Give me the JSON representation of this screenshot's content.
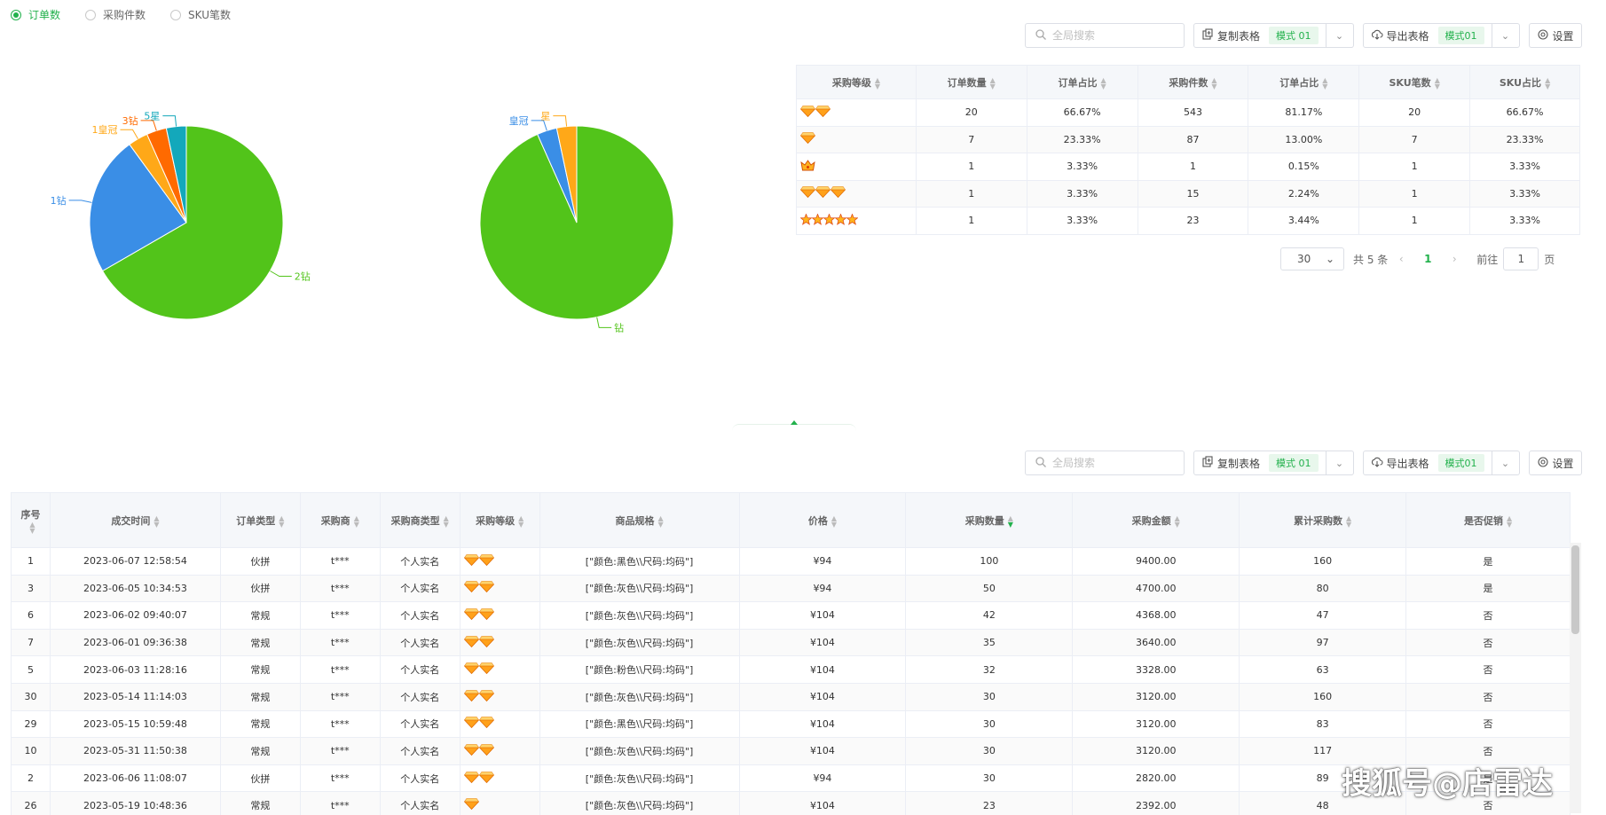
{
  "colors": {
    "accent": "#22b14c",
    "green": "#52c41a",
    "blue": "#3a8ee6",
    "orange": "#ffa818",
    "red_orange": "#ff6a00",
    "teal": "#13a8bb"
  },
  "radios": [
    {
      "label": "订单数",
      "active": true
    },
    {
      "label": "采购件数",
      "active": false
    },
    {
      "label": "SKU笔数",
      "active": false
    }
  ],
  "toolbar": {
    "search_placeholder": "全局搜索",
    "copy_label": "复制表格",
    "copy_mode": "模式 01",
    "export_label": "导出表格",
    "export_mode": "模式01",
    "settings_label": "设置"
  },
  "chart_data": [
    {
      "type": "pie",
      "title": "",
      "slices": [
        {
          "label": "2钻",
          "value": 20,
          "color": "#52c41a"
        },
        {
          "label": "1钻",
          "value": 7,
          "color": "#3a8ee6"
        },
        {
          "label": "1皇冠",
          "value": 1,
          "color": "#ffa818"
        },
        {
          "label": "3钻",
          "value": 1,
          "color": "#ff6a00"
        },
        {
          "label": "5星",
          "value": 1,
          "color": "#13a8bb"
        }
      ]
    },
    {
      "type": "pie",
      "title": "",
      "slices": [
        {
          "label": "钻",
          "value": 28,
          "color": "#52c41a"
        },
        {
          "label": "皇冠",
          "value": 1,
          "color": "#3a8ee6"
        },
        {
          "label": "星",
          "value": 1,
          "color": "#ffa818"
        }
      ]
    }
  ],
  "summary_table": {
    "headers": [
      "采购等级",
      "订单数量",
      "订单占比",
      "采购件数",
      "订单占比",
      "SKU笔数",
      "SKU占比"
    ],
    "rows": [
      {
        "level": {
          "icon": "diamond",
          "count": 2
        },
        "cells": [
          "20",
          "66.67%",
          "543",
          "81.17%",
          "20",
          "66.67%"
        ]
      },
      {
        "level": {
          "icon": "diamond",
          "count": 1
        },
        "cells": [
          "7",
          "23.33%",
          "87",
          "13.00%",
          "7",
          "23.33%"
        ]
      },
      {
        "level": {
          "icon": "crown",
          "count": 1
        },
        "cells": [
          "1",
          "3.33%",
          "1",
          "0.15%",
          "1",
          "3.33%"
        ]
      },
      {
        "level": {
          "icon": "diamond",
          "count": 3
        },
        "cells": [
          "1",
          "3.33%",
          "15",
          "2.24%",
          "1",
          "3.33%"
        ]
      },
      {
        "level": {
          "icon": "star",
          "count": 5
        },
        "cells": [
          "1",
          "3.33%",
          "23",
          "3.44%",
          "1",
          "3.33%"
        ]
      }
    ]
  },
  "pager": {
    "size": "30",
    "total": "共 5 条",
    "current": "1",
    "goto_label": "前往",
    "goto_value": "1",
    "page_suffix": "页"
  },
  "detail_table": {
    "headers": [
      "序号",
      "成交时间",
      "订单类型",
      "采购商",
      "采购商类型",
      "采购等级",
      "商品规格",
      "价格",
      "采购数量",
      "采购金额",
      "累计采购数",
      "是否促销"
    ],
    "rows": [
      {
        "cells": [
          "1",
          "2023-06-07 12:58:54",
          "伙拼",
          "t***",
          "个人实名"
        ],
        "level": 2,
        "spec": "[\"颜色:黑色\\\\尺码:均码\"]",
        "tail": [
          "¥94",
          "100",
          "9400.00",
          "160",
          "是"
        ]
      },
      {
        "cells": [
          "3",
          "2023-06-05 10:34:53",
          "伙拼",
          "t***",
          "个人实名"
        ],
        "level": 2,
        "spec": "[\"颜色:灰色\\\\尺码:均码\"]",
        "tail": [
          "¥94",
          "50",
          "4700.00",
          "80",
          "是"
        ]
      },
      {
        "cells": [
          "6",
          "2023-06-02 09:40:07",
          "常规",
          "t***",
          "个人实名"
        ],
        "level": 2,
        "spec": "[\"颜色:灰色\\\\尺码:均码\"]",
        "tail": [
          "¥104",
          "42",
          "4368.00",
          "47",
          "否"
        ]
      },
      {
        "cells": [
          "7",
          "2023-06-01 09:36:38",
          "常规",
          "t***",
          "个人实名"
        ],
        "level": 2,
        "spec": "[\"颜色:灰色\\\\尺码:均码\"]",
        "tail": [
          "¥104",
          "35",
          "3640.00",
          "97",
          "否"
        ]
      },
      {
        "cells": [
          "5",
          "2023-06-03 11:28:16",
          "常规",
          "t***",
          "个人实名"
        ],
        "level": 2,
        "spec": "[\"颜色:粉色\\\\尺码:均码\"]",
        "tail": [
          "¥104",
          "32",
          "3328.00",
          "63",
          "否"
        ]
      },
      {
        "cells": [
          "30",
          "2023-05-14 11:14:03",
          "常规",
          "t***",
          "个人实名"
        ],
        "level": 2,
        "spec": "[\"颜色:灰色\\\\尺码:均码\"]",
        "tail": [
          "¥104",
          "30",
          "3120.00",
          "160",
          "否"
        ]
      },
      {
        "cells": [
          "29",
          "2023-05-15 10:59:48",
          "常规",
          "t***",
          "个人实名"
        ],
        "level": 2,
        "spec": "[\"颜色:黑色\\\\尺码:均码\"]",
        "tail": [
          "¥104",
          "30",
          "3120.00",
          "83",
          "否"
        ]
      },
      {
        "cells": [
          "10",
          "2023-05-31 11:50:38",
          "常规",
          "t***",
          "个人实名"
        ],
        "level": 2,
        "spec": "[\"颜色:灰色\\\\尺码:均码\"]",
        "tail": [
          "¥104",
          "30",
          "3120.00",
          "117",
          "否"
        ]
      },
      {
        "cells": [
          "2",
          "2023-06-06 11:08:07",
          "伙拼",
          "t***",
          "个人实名"
        ],
        "level": 2,
        "spec": "[\"颜色:灰色\\\\尺码:均码\"]",
        "tail": [
          "¥94",
          "30",
          "2820.00",
          "89",
          "是"
        ]
      },
      {
        "cells": [
          "26",
          "2023-05-19 10:48:36",
          "常规",
          "t***",
          "个人实名"
        ],
        "level": 1,
        "spec": "[\"颜色:灰色\\\\尺码:均码\"]",
        "tail": [
          "¥104",
          "23",
          "2392.00",
          "48",
          "否"
        ]
      }
    ]
  },
  "watermark": "搜狐号@店雷达"
}
